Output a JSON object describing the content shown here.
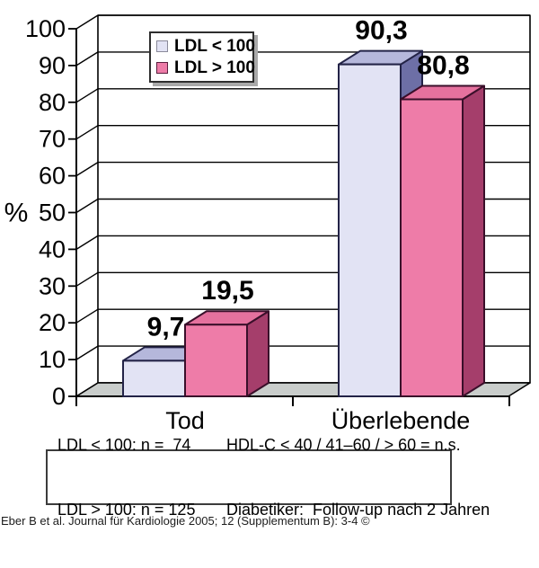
{
  "chart_data": {
    "type": "bar",
    "style": "3d-clustered",
    "title": "",
    "categories": [
      "Tod",
      "Überlebende"
    ],
    "series": [
      {
        "name": "LDL < 100",
        "values": [
          9.7,
          90.3
        ],
        "value_labels": [
          "9,7",
          "90,3"
        ],
        "color_front": "#e2e3f4",
        "color_top": "#b5b7db",
        "color_side": "#6d6fa6",
        "color_edge": "#232347",
        "swatch_border": "#8a8a9a"
      },
      {
        "name": "LDL > 100",
        "values": [
          19.5,
          80.8
        ],
        "value_labels": [
          "19,5",
          "80,8"
        ],
        "color_front": "#ee7ca8",
        "color_top": "#e5719e",
        "color_side": "#a53e6b",
        "color_edge": "#3a0f2a",
        "swatch_border": "#5c1f3f"
      }
    ],
    "ylabel": "%",
    "ylim": [
      0,
      100
    ],
    "yticks": [
      0,
      10,
      20,
      30,
      40,
      50,
      60,
      70,
      80,
      90,
      100
    ],
    "grid": true,
    "legend_position": "top-inside-left",
    "wall_color": "#ffffff",
    "floor_color": "#c9cdcb",
    "axis_color": "#000000",
    "label_color": "#000000"
  },
  "footer_box": {
    "left_lines": [
      "LDL < 100: n =  74",
      "LDL > 100: n = 125"
    ],
    "right_lines": [
      "HDL-C < 40 / 41–60 / > 60 = n.s.",
      "Diabetiker:  Follow-up nach 2 Jahren"
    ]
  },
  "caption": "Eber B et al. Journal für Kardiologie 2005; 12 (Supplementum B): 3-4 ©"
}
